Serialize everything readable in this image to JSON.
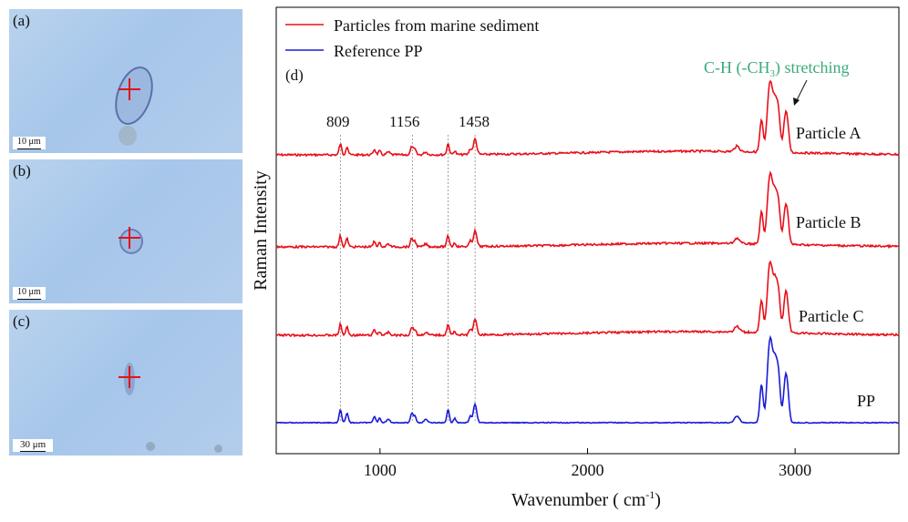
{
  "panels": [
    {
      "label": "(a)",
      "scale": "10 μm"
    },
    {
      "label": "(b)",
      "scale": "10 μm"
    },
    {
      "label": "(c)",
      "scale": "30 μm"
    }
  ],
  "chart_data": {
    "type": "line",
    "panel_label": "(d)",
    "xlabel": "Wavenumber ( cm",
    "xlabel_sup": "-1",
    "xlabel_end": ")",
    "ylabel": "Raman  Intensity",
    "xlim": [
      500,
      3500
    ],
    "xticks": [
      1000,
      2000,
      3000
    ],
    "xtick_labels": [
      "1000",
      "2000",
      "3000"
    ],
    "legend": [
      {
        "name": "Particles from marine sediment",
        "color": "#e8101a"
      },
      {
        "name": "Reference PP",
        "color": "#1a1ad8"
      }
    ],
    "peak_labels": [
      {
        "text": "809",
        "x": 809
      },
      {
        "text": "1156",
        "x": 1156
      },
      {
        "text": "1458",
        "x": 1458
      }
    ],
    "reference_lines_x": [
      809,
      1156,
      1328,
      1458
    ],
    "annotation": {
      "text": "C-H (-CH",
      "sub": "3",
      "end": ") stretching",
      "color": "#3aaa7a",
      "arrow_to_x": 2950
    },
    "peaks": [
      {
        "x": 809,
        "height": 12,
        "width": 6
      },
      {
        "x": 841,
        "height": 9,
        "width": 6
      },
      {
        "x": 973,
        "height": 6,
        "width": 6
      },
      {
        "x": 998,
        "height": 4,
        "width": 6
      },
      {
        "x": 1040,
        "height": 3,
        "width": 8
      },
      {
        "x": 1153,
        "height": 9,
        "width": 6
      },
      {
        "x": 1168,
        "height": 6,
        "width": 6
      },
      {
        "x": 1220,
        "height": 3,
        "width": 8
      },
      {
        "x": 1328,
        "height": 12,
        "width": 6
      },
      {
        "x": 1360,
        "height": 4,
        "width": 6
      },
      {
        "x": 1435,
        "height": 6,
        "width": 6
      },
      {
        "x": 1458,
        "height": 17,
        "width": 8
      },
      {
        "x": 2720,
        "height": 6,
        "width": 12
      },
      {
        "x": 2838,
        "height": 35,
        "width": 8
      },
      {
        "x": 2870,
        "height": 40,
        "width": 9
      },
      {
        "x": 2883,
        "height": 55,
        "width": 9
      },
      {
        "x": 2902,
        "height": 52,
        "width": 10
      },
      {
        "x": 2920,
        "height": 40,
        "width": 9
      },
      {
        "x": 2953,
        "height": 38,
        "width": 9
      },
      {
        "x": 2965,
        "height": 18,
        "width": 8
      }
    ],
    "series": [
      {
        "name": "Particle A",
        "color": "#e8101a",
        "offset": 0
      },
      {
        "name": "Particle B",
        "color": "#e8101a",
        "offset": 1
      },
      {
        "name": "Particle C",
        "color": "#e8101a",
        "offset": 2
      },
      {
        "name": "PP",
        "color": "#1a1ad8",
        "offset": 3
      }
    ]
  }
}
